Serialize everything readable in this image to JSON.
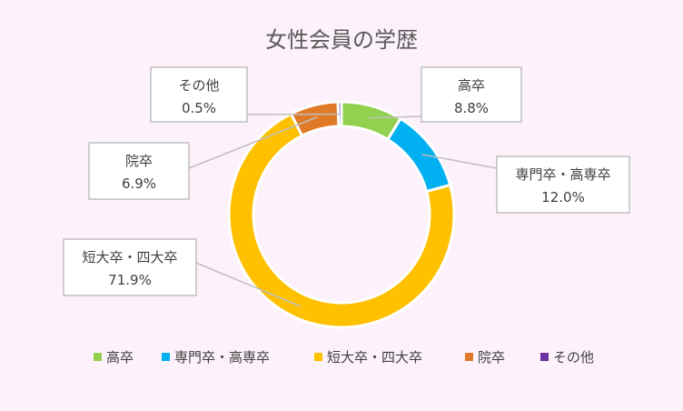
{
  "chart_data": {
    "type": "doughnut",
    "title": "女性会員の学歴",
    "categories": [
      "高卒",
      "専門卒・高専卒",
      "短大卒・四大卒",
      "院卒",
      "その他"
    ],
    "values": [
      8.8,
      12.0,
      71.9,
      6.9,
      0.5
    ],
    "value_labels": [
      "8.8%",
      "12.0%",
      "71.9%",
      "6.9%",
      "0.5%"
    ],
    "colors": [
      "#92d050",
      "#00b0f0",
      "#ffc000",
      "#e07a27",
      "#7030a0"
    ],
    "legend_position": "bottom"
  }
}
